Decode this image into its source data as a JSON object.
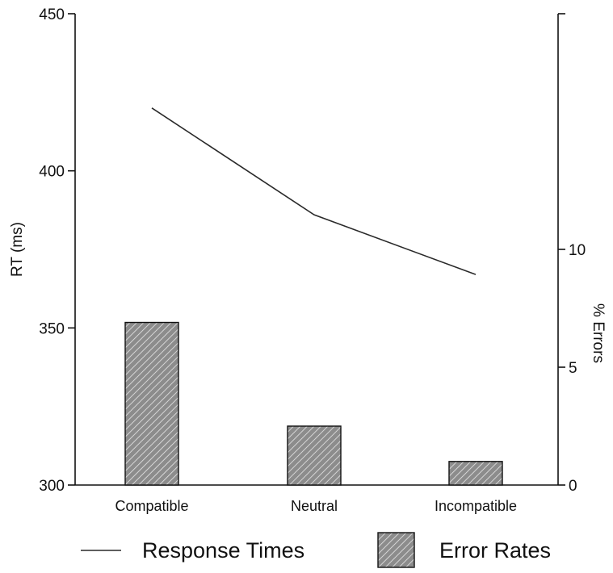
{
  "chart_data": {
    "type": "bar",
    "categories": [
      "Compatible",
      "Neutral",
      "Incompatible"
    ],
    "series": [
      {
        "name": "Response Times",
        "kind": "line",
        "axis": "left",
        "values": [
          420,
          386,
          367
        ]
      },
      {
        "name": "Error Rates",
        "kind": "bar",
        "axis": "right",
        "values": [
          6.9,
          2.5,
          1.0
        ]
      }
    ],
    "ylabel": "RT (ms)",
    "ylim": [
      300,
      450
    ],
    "yticks": [
      300,
      350,
      400,
      450
    ],
    "y2label": "% Errors",
    "y2lim": [
      0,
      20
    ],
    "y2ticks": [
      0,
      5,
      10
    ],
    "grid": false,
    "legend_position": "bottom",
    "colors": {
      "line": "#2a2a2a",
      "bar_fill": "#8c8c8c",
      "bar_hatch": "#e8e8e8",
      "axis": "#111111"
    }
  }
}
